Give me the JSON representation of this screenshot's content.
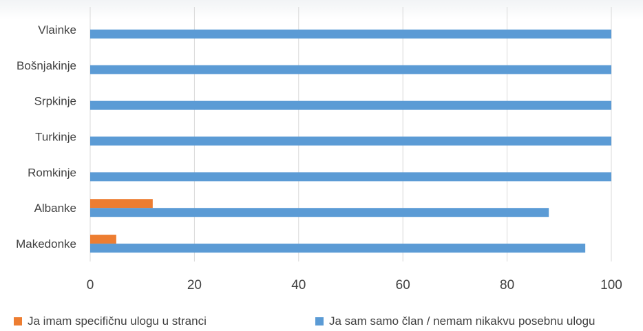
{
  "chart_data": {
    "type": "bar",
    "orientation": "horizontal",
    "categories": [
      "Vlainke",
      "Bošnjakinje",
      "Srpkinje",
      "Turkinje",
      "Romkinje",
      "Albanke",
      "Makedonke"
    ],
    "series": [
      {
        "name": "Ja imam specifičnu ulogu u stranci",
        "color": "#ed7d31",
        "values": [
          0,
          0,
          0,
          0,
          0,
          12,
          5
        ]
      },
      {
        "name": "Ja sam samo član / nemam nikakvu posebnu ulogu",
        "color": "#5b9bd5",
        "values": [
          100,
          100,
          100,
          100,
          100,
          88,
          95
        ]
      }
    ],
    "xlim": [
      0,
      100
    ],
    "xticks": [
      "0",
      "20",
      "40",
      "60",
      "80",
      "100"
    ],
    "grid": true,
    "legend_position": "bottom"
  }
}
